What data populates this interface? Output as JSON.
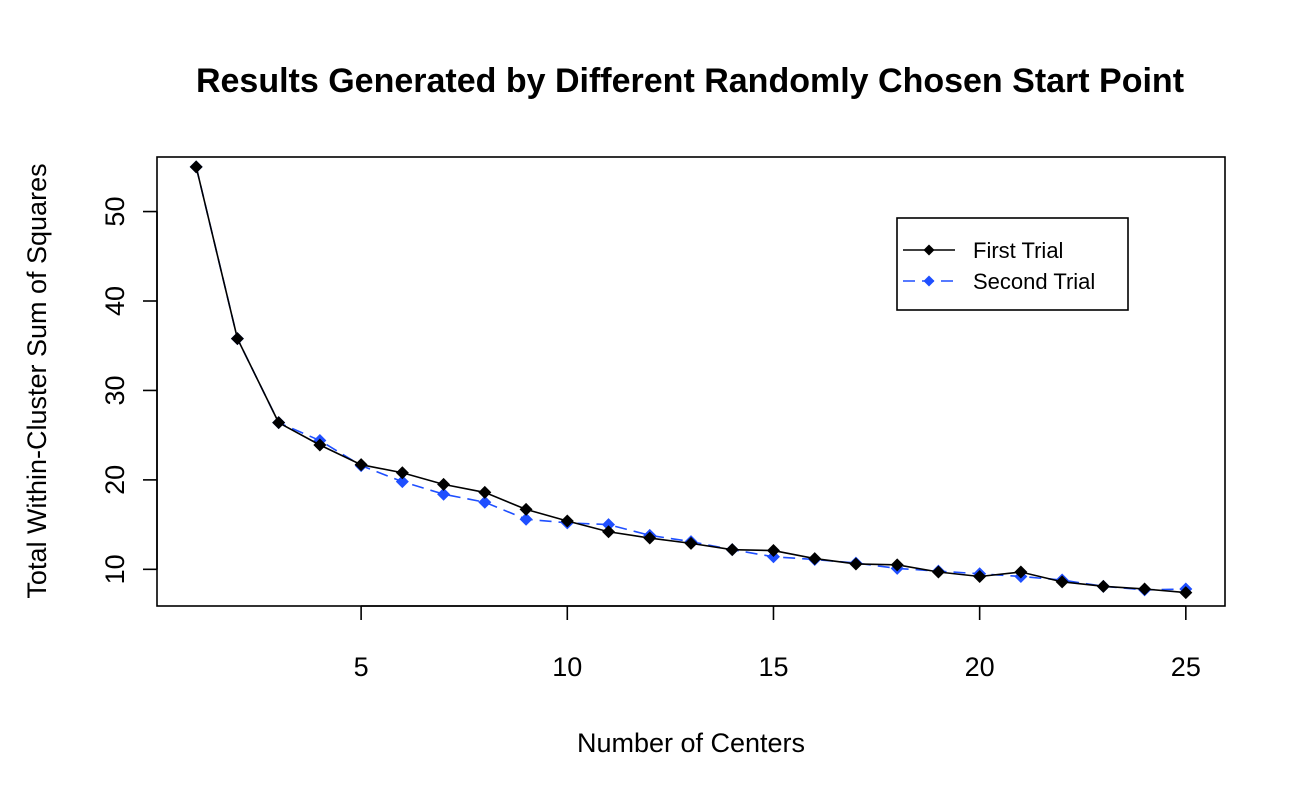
{
  "chart_data": {
    "type": "line",
    "title": "Results Generated by Different Randomly Chosen Start Point",
    "xlabel": "Number of Centers",
    "ylabel": "Total Within-Cluster Sum of Squares",
    "xlim": [
      0.05,
      25.95
    ],
    "ylim": [
      5.9,
      56.1
    ],
    "x_ticks": [
      5,
      10,
      15,
      20,
      25
    ],
    "y_ticks": [
      10,
      20,
      30,
      40,
      50
    ],
    "grid": false,
    "legend_position": "top-right",
    "x": [
      1,
      2,
      3,
      4,
      5,
      6,
      7,
      8,
      9,
      10,
      11,
      12,
      13,
      14,
      15,
      16,
      17,
      18,
      19,
      20,
      21,
      22,
      23,
      24,
      25
    ],
    "series": [
      {
        "name": "First Trial",
        "color": "#000000",
        "line_style": "solid",
        "values": [
          55.0,
          35.8,
          26.4,
          23.9,
          21.7,
          20.8,
          19.5,
          18.6,
          16.7,
          15.4,
          14.2,
          13.5,
          12.9,
          12.2,
          12.1,
          11.2,
          10.6,
          10.5,
          9.7,
          9.2,
          9.7,
          8.6,
          8.1,
          7.8,
          7.4
        ]
      },
      {
        "name": "Second Trial",
        "color": "#1f4fff",
        "line_style": "dashed",
        "values": [
          55.0,
          35.8,
          26.4,
          24.4,
          21.6,
          19.8,
          18.4,
          17.5,
          15.6,
          15.2,
          15.0,
          13.8,
          13.1,
          12.2,
          11.4,
          11.1,
          10.7,
          10.1,
          9.8,
          9.5,
          9.2,
          8.8,
          8.1,
          7.7,
          7.8
        ]
      }
    ]
  }
}
